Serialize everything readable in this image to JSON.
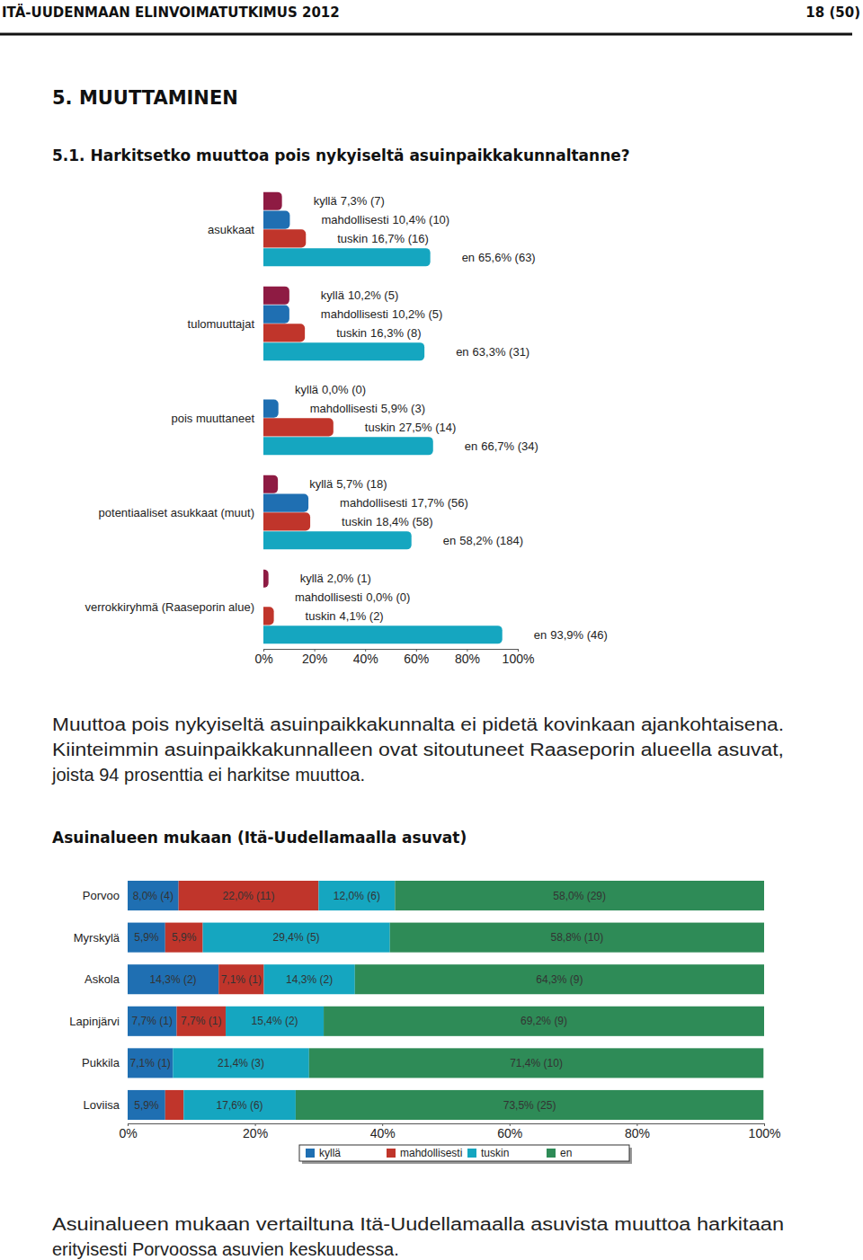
{
  "header": {
    "title": "ITÄ-UUDENMAAN ELINVOIMATUTKIMUS 2012",
    "page": "18 (50)"
  },
  "section_title": "5. MUUTTAMINEN",
  "question": "5.1. Harkitsetko muuttoa pois nykyiseltä asuinpaikkakunnaltanne?",
  "chart_data": [
    {
      "type": "bar",
      "orientation": "horizontal",
      "data_labels": true,
      "categories": [
        "asukkaat",
        "tulomuuttajat",
        "pois muuttaneet",
        "potentiaaliset asukkaat (muut)",
        "verrokkiryhmä (Raaseporin alue)"
      ],
      "series": [
        {
          "name": "kyllä",
          "color": "#8e1b43",
          "values": [
            7.3,
            10.2,
            0.0,
            5.7,
            2.0
          ],
          "value_labels": [
            "7,3% (7)",
            "10,2% (5)",
            "0,0% (0)",
            "5,7% (18)",
            "2,0% (1)"
          ]
        },
        {
          "name": "mahdollisesti",
          "color": "#1f6fb2",
          "values": [
            10.4,
            10.2,
            5.9,
            17.7,
            0.0
          ],
          "value_labels": [
            "10,4% (10)",
            "10,2% (5)",
            "5,9% (3)",
            "17,7% (56)",
            "0,0% (0)"
          ]
        },
        {
          "name": "tuskin",
          "color": "#c0352b",
          "values": [
            16.7,
            16.3,
            27.5,
            18.4,
            4.1
          ],
          "value_labels": [
            "16,7% (16)",
            "16,3% (8)",
            "27,5% (14)",
            "18,4% (58)",
            "4,1% (2)"
          ]
        },
        {
          "name": "en",
          "color": "#15a6c0",
          "values": [
            65.6,
            63.3,
            66.7,
            58.2,
            93.9
          ],
          "value_labels": [
            "65,6% (63)",
            "63,3% (31)",
            "66,7% (34)",
            "58,2% (184)",
            "93,9% (46)"
          ]
        }
      ],
      "xlim": [
        0,
        100
      ],
      "xticks": [
        {
          "value": 0,
          "label": "0%"
        },
        {
          "value": 20,
          "label": "20%"
        },
        {
          "value": 40,
          "label": "40%"
        },
        {
          "value": 60,
          "label": "60%"
        },
        {
          "value": 80,
          "label": "80%"
        },
        {
          "value": 100,
          "label": "100%"
        }
      ]
    },
    {
      "type": "bar",
      "orientation": "horizontal",
      "stacked": true,
      "data_labels": true,
      "legend": "bottom",
      "title": "Asuinalueen mukaan (Itä-Uudellamaalla asuvat)",
      "categories": [
        "Porvoo",
        "Myrskylä",
        "Askola",
        "Lapinjärvi",
        "Pukkila",
        "Loviisa"
      ],
      "series": [
        {
          "name": "kyllä",
          "color": "#1f6fb2",
          "values": [
            8.0,
            5.9,
            14.3,
            7.7,
            7.1,
            5.9
          ],
          "value_labels": [
            "8,0% (4)",
            "5,9%",
            "14,3% (2)",
            "7,7% (1)",
            "7,1% (1)",
            "5,9%"
          ]
        },
        {
          "name": "mahdollisesti",
          "color": "#c0352b",
          "values": [
            22.0,
            5.9,
            7.1,
            7.7,
            0.0,
            2.9
          ],
          "value_labels": [
            "22,0% (11)",
            "5,9%",
            "7,1% (1)",
            "7,7% (1)",
            null,
            null
          ]
        },
        {
          "name": "tuskin",
          "color": "#15a6c0",
          "values": [
            12.0,
            29.4,
            14.3,
            15.4,
            21.4,
            17.6
          ],
          "value_labels": [
            "12,0% (6)",
            "29,4% (5)",
            "14,3% (2)",
            "15,4% (2)",
            "21,4% (3)",
            "17,6% (6)"
          ]
        },
        {
          "name": "en",
          "color": "#2e8b57",
          "values": [
            58.0,
            58.8,
            64.3,
            69.2,
            71.4,
            73.5
          ],
          "value_labels": [
            "58,0% (29)",
            "58,8% (10)",
            "64,3% (9)",
            "69,2% (9)",
            "71,4% (10)",
            "73,5% (25)"
          ]
        }
      ],
      "xlim": [
        0,
        100
      ],
      "xticks": [
        {
          "value": 0,
          "label": "0%"
        },
        {
          "value": 20,
          "label": "20%"
        },
        {
          "value": 40,
          "label": "40%"
        },
        {
          "value": 60,
          "label": "60%"
        },
        {
          "value": 80,
          "label": "80%"
        },
        {
          "value": 100,
          "label": "100%"
        }
      ]
    }
  ],
  "paragraphs": [
    [
      "Muuttoa pois nykyiseltä asuinpaikkakunnalta ei pidetä kovinkaan ajankohtaisena.",
      "Kiinteimmin asuinpaikkakunnalleen ovat sitoutuneet Raaseporin alueella asuvat,",
      "joista 94 prosenttia ei harkitse muuttoa."
    ],
    [
      "Asuinalueen mukaan vertailtuna Itä-Uudellamaalla asuvista muuttoa harkitaan",
      "erityisesti Porvoossa asuvien keskuudessa."
    ]
  ]
}
